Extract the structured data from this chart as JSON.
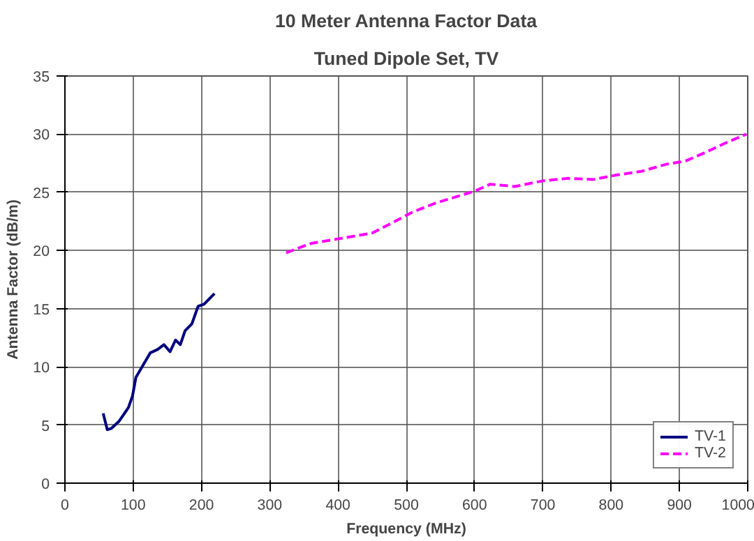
{
  "chart_data": {
    "type": "line",
    "title": "10 Meter Antenna Factor Data",
    "subtitle": "Tuned Dipole Set, TV",
    "xlabel": "Frequency (MHz)",
    "ylabel": "Antenna Factor (dB/m)",
    "xlim": [
      0,
      1000
    ],
    "ylim": [
      0,
      35
    ],
    "xticks": [
      0,
      100,
      200,
      300,
      400,
      500,
      600,
      700,
      800,
      900,
      1000
    ],
    "yticks": [
      0,
      5,
      10,
      15,
      20,
      25,
      30,
      35
    ],
    "grid": true,
    "legend": "bottom right",
    "series": [
      {
        "name": "TV-1",
        "color": "#000080",
        "line_style": "solid",
        "x": [
          56,
          62,
          68,
          79,
          93,
          99,
          104,
          114,
          125,
          136,
          145,
          154,
          162,
          169,
          176,
          186,
          195,
          204,
          219
        ],
        "values": [
          6.0,
          4.6,
          4.7,
          5.3,
          6.5,
          7.5,
          9.1,
          10.1,
          11.2,
          11.5,
          11.9,
          11.3,
          12.3,
          11.9,
          13.1,
          13.7,
          15.2,
          15.4,
          16.3
        ]
      },
      {
        "name": "TV-2",
        "color": "#ff00ff",
        "line_style": "dashed",
        "x": [
          324,
          360,
          400,
          450,
          480,
          509,
          544,
          600,
          623,
          659,
          701,
          737,
          773,
          809,
          844,
          880,
          909,
          937,
          966,
          998
        ],
        "values": [
          19.8,
          20.6,
          21.0,
          21.5,
          22.4,
          23.3,
          24.1,
          25.1,
          25.7,
          25.5,
          26.0,
          26.2,
          26.1,
          26.5,
          26.8,
          27.4,
          27.7,
          28.4,
          29.2,
          30.0
        ]
      }
    ]
  }
}
